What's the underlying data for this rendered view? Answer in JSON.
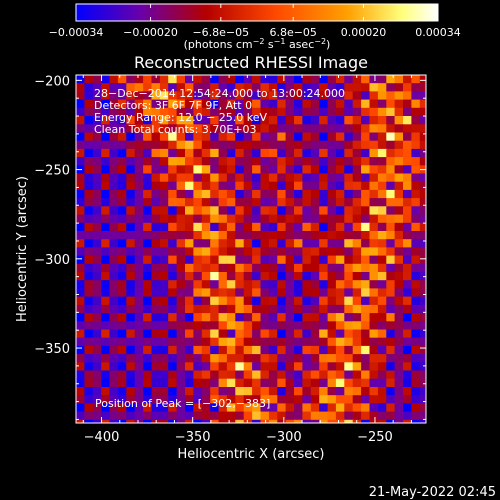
{
  "colors": {
    "background": "#000000",
    "text": "#ffffff",
    "colormap_stops": [
      "#0000ff",
      "#6a00a8",
      "#b40000",
      "#ff4800",
      "#ffa000",
      "#ffff7a",
      "#ffffff"
    ]
  },
  "footer": {
    "date": "21-May-2022 02:45"
  },
  "chart_data": {
    "type": "heatmap",
    "title": "Reconstructed RHESSI Image",
    "xlabel": "Heliocentric X (arcsec)",
    "ylabel": "Heliocentric Y (arcsec)",
    "xlim": [
      -414,
      -222
    ],
    "ylim": [
      -392,
      -197
    ],
    "x_ticks": [
      -400,
      -350,
      -300,
      -250
    ],
    "y_ticks": [
      -200,
      -250,
      -300,
      -350
    ],
    "x_tick_labels": [
      "−400",
      "−350",
      "−300",
      "−250"
    ],
    "y_tick_labels": [
      "−200",
      "−250",
      "−300",
      "−350"
    ],
    "colorbar": {
      "range": [
        -0.00034,
        0.00034
      ],
      "ticks": [
        -0.00034,
        -0.0002,
        -6.8e-05,
        6.8e-05,
        0.0002,
        0.00034
      ],
      "tick_labels": [
        "−0.00034",
        "−0.00020",
        "−6.8e−05",
        "6.8e−05",
        "0.00020",
        "0.00034"
      ],
      "units_prefix": "(photons cm",
      "units_sup1": "−2",
      "units_mid1": " s",
      "units_sup2": "−1",
      "units_mid2": " asec",
      "units_sup3": "−2",
      "units_suffix": ")"
    },
    "annotations": [
      "28−Dec−2014 12:54:24.000 to 13:00:24.000",
      "Detectors: 3F 6F 7F 9F, Att 0",
      "Energy Range: 12.0 − 25.0 keV",
      "Clean    Total counts: 3.70E+03"
    ],
    "peak_label": "Position of Peak = [−302,−383]",
    "emission_ridges": [
      {
        "name_hidden": true,
        "x": [
          -372,
          -362,
          -352,
          -346,
          -340,
          -336,
          -332,
          -326,
          -318
        ],
        "y": [
          -200,
          -225,
          -250,
          -272,
          -296,
          -318,
          -342,
          -366,
          -392
        ],
        "intensity": 0.0003
      },
      {
        "name_hidden": true,
        "x": [
          -246,
          -244,
          -244,
          -248,
          -254,
          -260,
          -266,
          -270,
          -276
        ],
        "y": [
          -200,
          -225,
          -250,
          -272,
          -296,
          -318,
          -342,
          -366,
          -392
        ],
        "intensity": 0.0003
      },
      {
        "name_hidden": true,
        "x": [
          -318,
          -312,
          -304,
          -298,
          -292
        ],
        "y": [
          -205,
          -225,
          -250,
          -275,
          -300
        ],
        "intensity": 0.00012
      }
    ]
  }
}
